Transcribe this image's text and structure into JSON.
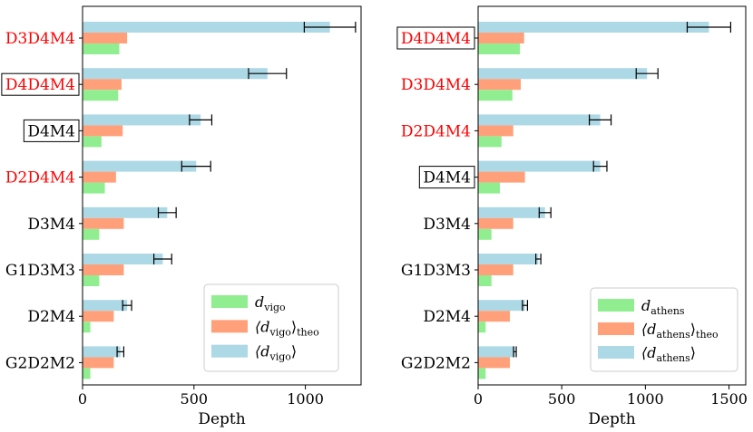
{
  "chart_data": [
    {
      "type": "bar",
      "orientation": "horizontal",
      "categories": [
        "D3D4M4",
        "D4D4M4",
        "D4M4",
        "D2D4M4",
        "D3M4",
        "G1D3M3",
        "D2M4",
        "G2D2M2"
      ],
      "category_styles": [
        {
          "color": "#ff0000",
          "boxed": false
        },
        {
          "color": "#ff0000",
          "boxed": true
        },
        {
          "color": "#000000",
          "boxed": true
        },
        {
          "color": "#ff0000",
          "boxed": false
        },
        {
          "color": "#000000",
          "boxed": false
        },
        {
          "color": "#000000",
          "boxed": false
        },
        {
          "color": "#000000",
          "boxed": false
        },
        {
          "color": "#000000",
          "boxed": false
        }
      ],
      "series": [
        {
          "key": "mean",
          "legend_main": "⟨d",
          "legend_sub": "vigo",
          "legend_after": "⟩",
          "color": "#add8e6",
          "values": [
            1110,
            830,
            530,
            510,
            380,
            360,
            200,
            170
          ],
          "errors": [
            115,
            85,
            50,
            65,
            40,
            40,
            20,
            15
          ]
        },
        {
          "key": "theo",
          "legend_main": "⟨d",
          "legend_sub": "vigo",
          "legend_after": "⟩",
          "legend_sub2": "theo",
          "color": "#ffa07a",
          "values": [
            200,
            175,
            180,
            150,
            185,
            185,
            140,
            140
          ]
        },
        {
          "key": "observed",
          "legend_main": "d",
          "legend_sub": "vigo",
          "legend_after": "",
          "color": "#90ee90",
          "values": [
            165,
            160,
            85,
            100,
            75,
            75,
            35,
            35
          ]
        }
      ],
      "xlabel": "Depth",
      "xlim": [
        0,
        1250
      ],
      "xticks": [
        0,
        500,
        1000
      ],
      "legend_position": "lower-right"
    },
    {
      "type": "bar",
      "orientation": "horizontal",
      "categories": [
        "D4D4M4",
        "D3D4M4",
        "D2D4M4",
        "D4M4",
        "D3M4",
        "G1D3M3",
        "D2M4",
        "G2D2M2"
      ],
      "category_styles": [
        {
          "color": "#ff0000",
          "boxed": true
        },
        {
          "color": "#ff0000",
          "boxed": false
        },
        {
          "color": "#ff0000",
          "boxed": false
        },
        {
          "color": "#000000",
          "boxed": true
        },
        {
          "color": "#000000",
          "boxed": false
        },
        {
          "color": "#000000",
          "boxed": false
        },
        {
          "color": "#000000",
          "boxed": false
        },
        {
          "color": "#000000",
          "boxed": false
        }
      ],
      "series": [
        {
          "key": "mean",
          "legend_main": "⟨d",
          "legend_sub": "athens",
          "legend_after": "⟩",
          "color": "#add8e6",
          "values": [
            1380,
            1010,
            730,
            730,
            400,
            360,
            280,
            220
          ],
          "errors": [
            130,
            65,
            65,
            40,
            35,
            15,
            15,
            8
          ]
        },
        {
          "key": "theo",
          "legend_main": "⟨d",
          "legend_sub": "athens",
          "legend_after": "⟩",
          "legend_sub2": "theo",
          "color": "#ffa07a",
          "values": [
            275,
            255,
            210,
            280,
            210,
            210,
            190,
            190
          ]
        },
        {
          "key": "observed",
          "legend_main": "d",
          "legend_sub": "athens",
          "legend_after": "",
          "color": "#90ee90",
          "values": [
            250,
            205,
            140,
            130,
            80,
            80,
            45,
            45
          ]
        }
      ],
      "xlabel": "Depth",
      "xlim": [
        0,
        1600
      ],
      "xticks": [
        0,
        500,
        1000,
        1500
      ],
      "legend_position": "lower-right"
    }
  ]
}
